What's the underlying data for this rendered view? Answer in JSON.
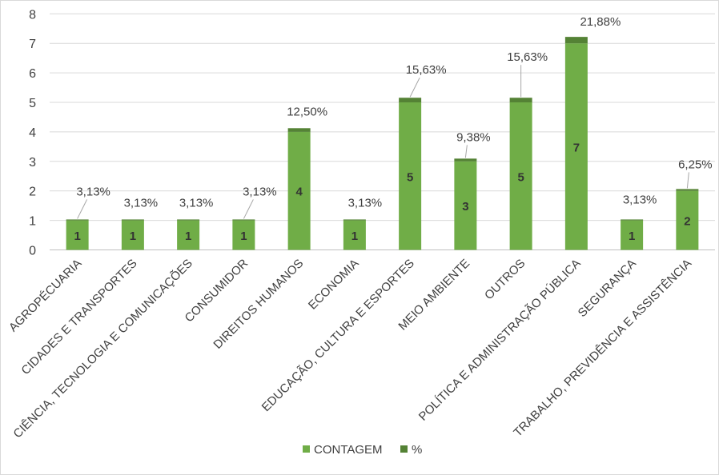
{
  "chart_data": {
    "type": "bar",
    "stacked": true,
    "categories": [
      "AGROPÉCUARIA",
      "CIDADES E TRANSPORTES",
      "CIÊNCIA, TECNOLOGIA E COMUNICAÇÕES",
      "CONSUMIDOR",
      "DIREITOS HUMANOS",
      "ECONOMIA",
      "EDUCAÇÃO, CULTURA E ESPORTES",
      "MEIO AMBIENTE",
      "OUTROS",
      "POLÍTICA E ADMINISTRAÇÃO PÚBLICA",
      "SEGURANÇA",
      "TRABALHO, PREVIDÊNCIA E ASSISTÊNCIA"
    ],
    "series": [
      {
        "name": "CONTAGEM",
        "color": "#70ad47",
        "values": [
          1,
          1,
          1,
          1,
          4,
          1,
          5,
          3,
          5,
          7,
          1,
          2
        ]
      },
      {
        "name": "%",
        "color": "#548235",
        "values": [
          0.0313,
          0.0313,
          0.0313,
          0.0313,
          0.125,
          0.0313,
          0.1563,
          0.0938,
          0.1563,
          0.2188,
          0.0313,
          0.0625
        ]
      }
    ],
    "data_labels": {
      "count": [
        "1",
        "1",
        "1",
        "1",
        "4",
        "1",
        "5",
        "3",
        "5",
        "7",
        "1",
        "2"
      ],
      "percent": [
        "3,13%",
        "3,13%",
        "3,13%",
        "3,13%",
        "12,50%",
        "3,13%",
        "15,63%",
        "9,38%",
        "15,63%",
        "21,88%",
        "3,13%",
        "6,25%"
      ]
    },
    "yticks": [
      "0",
      "1",
      "2",
      "3",
      "4",
      "5",
      "6",
      "7",
      "8"
    ],
    "ylim": [
      0,
      8
    ],
    "grid": true,
    "legend_position": "bottom"
  }
}
